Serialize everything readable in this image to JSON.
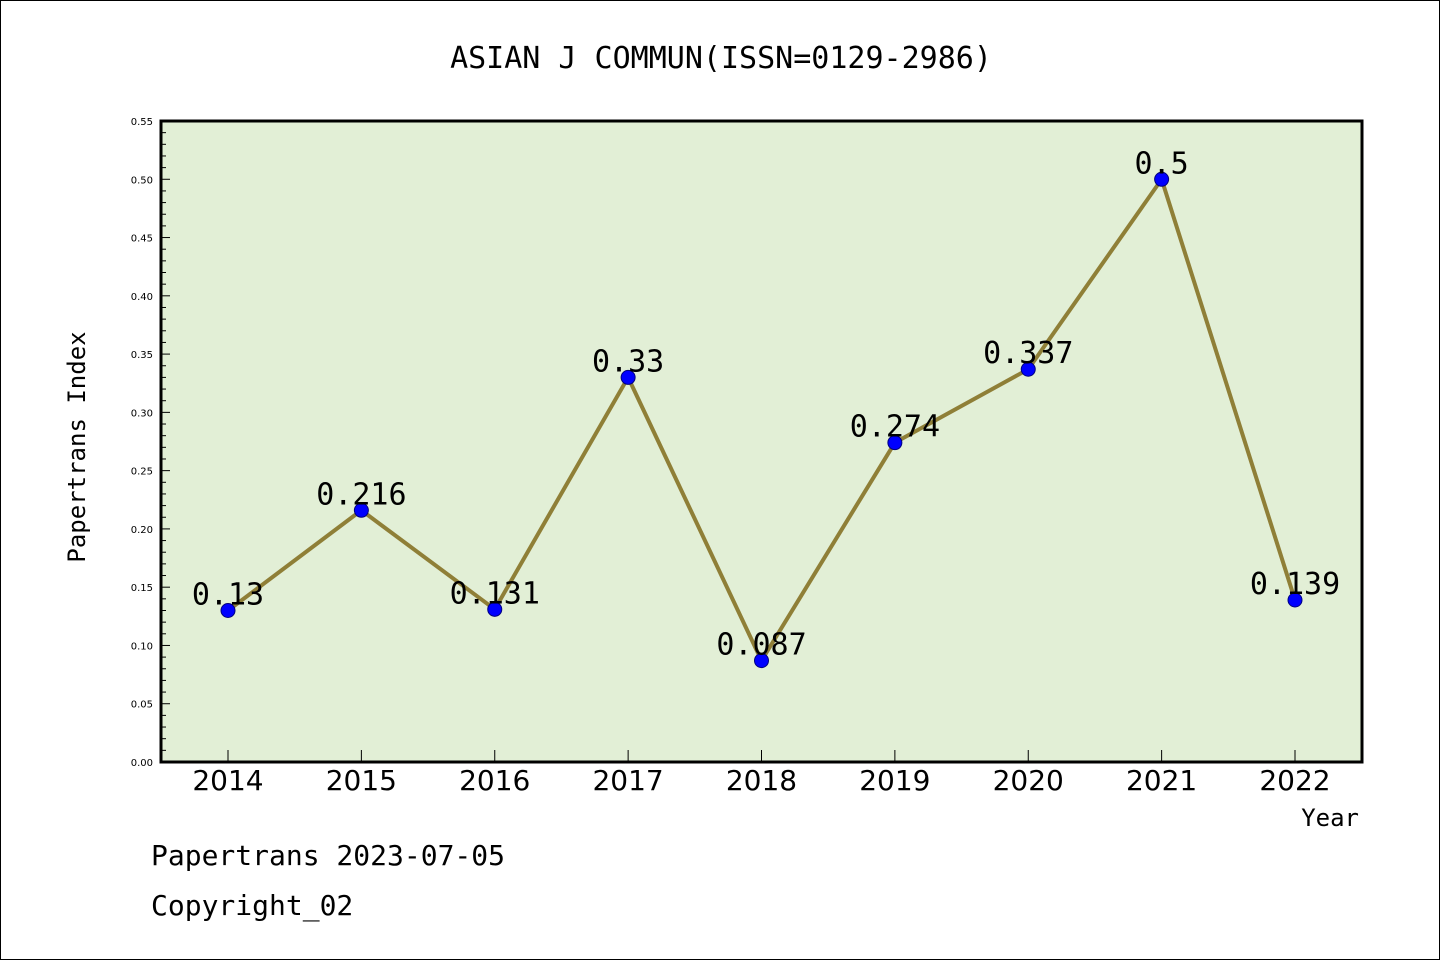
{
  "chart_data": {
    "type": "line",
    "title": "ASIAN J COMMUN(ISSN=0129-2986)",
    "xlabel": "Year",
    "ylabel": "Papertrans Index",
    "categories": [
      "2014",
      "2015",
      "2016",
      "2017",
      "2018",
      "2019",
      "2020",
      "2021",
      "2022"
    ],
    "series": [
      {
        "values": [
          0.13,
          0.216,
          0.131,
          0.33,
          0.087,
          0.274,
          0.337,
          0.5,
          0.139
        ],
        "data_labels": [
          "0.13",
          "0.216",
          "0.131",
          "0.33",
          "0.087",
          "0.274",
          "0.337",
          "0.5",
          "0.139"
        ]
      }
    ],
    "ylim": [
      0,
      0.55
    ],
    "y_ticks": [
      "0.00",
      "0.05",
      "0.10",
      "0.15",
      "0.20",
      "0.25",
      "0.30",
      "0.35",
      "0.40",
      "0.45",
      "0.50",
      "0.55"
    ],
    "grid": false,
    "legend": "none",
    "colors": {
      "plot_background": "#e2efd6",
      "line": "#8f7f37",
      "marker": "#0000ff",
      "marker_edge": "#00007f"
    }
  },
  "footer": {
    "line1": "Papertrans 2023-07-05",
    "line2": "Copyright_02"
  }
}
